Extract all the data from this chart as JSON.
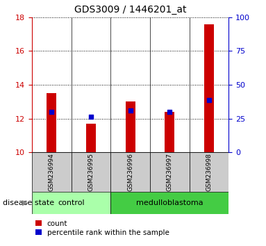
{
  "title": "GDS3009 / 1446201_at",
  "samples": [
    "GSM236994",
    "GSM236995",
    "GSM236996",
    "GSM236997",
    "GSM236998"
  ],
  "red_values": [
    13.5,
    11.7,
    13.0,
    12.4,
    17.6
  ],
  "blue_values": [
    12.4,
    12.1,
    12.5,
    12.4,
    13.1
  ],
  "ymin": 10,
  "ymax": 18,
  "y_ticks_left": [
    10,
    12,
    14,
    16,
    18
  ],
  "y_ticks_right": [
    0,
    25,
    50,
    75,
    100
  ],
  "groups": [
    {
      "label": "control",
      "indices": [
        0,
        1
      ],
      "color": "#aaffaa"
    },
    {
      "label": "medulloblastoma",
      "indices": [
        2,
        3,
        4
      ],
      "color": "#44cc44"
    }
  ],
  "disease_state_label": "disease state",
  "legend_items": [
    {
      "label": "count",
      "color": "#cc0000"
    },
    {
      "label": "percentile rank within the sample",
      "color": "#0000cc"
    }
  ],
  "bar_color": "#cc0000",
  "dot_color": "#0000cc",
  "left_axis_color": "#cc0000",
  "right_axis_color": "#0000cc",
  "sample_box_color": "#cccccc",
  "bar_width": 0.25
}
